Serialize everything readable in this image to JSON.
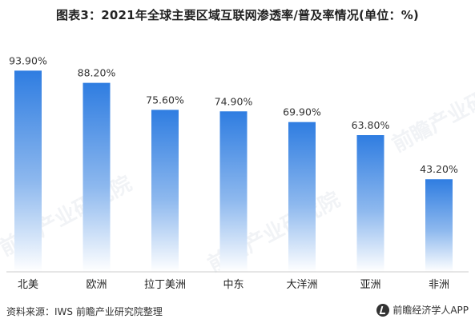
{
  "title": "图表3：2021年全球主要区域互联网渗透率/普及率情况(单位：%)",
  "footer": {
    "source": "资料来源：IWS 前瞻产业研究院整理",
    "brand": "前瞻经济学人APP"
  },
  "watermark": "前瞻产业研究院",
  "colors": {
    "bar_top": "#2f7de1",
    "bar_bottom": "#ffffff"
  },
  "chart_data": {
    "type": "bar",
    "categories": [
      "北美",
      "欧洲",
      "拉丁美洲",
      "中东",
      "大洋洲",
      "亚洲",
      "非洲"
    ],
    "values": [
      93.9,
      88.2,
      75.6,
      74.9,
      69.9,
      63.8,
      43.2
    ],
    "value_labels": [
      "93.90%",
      "88.20%",
      "75.60%",
      "74.90%",
      "69.90%",
      "63.80%",
      "43.20%"
    ],
    "ylim": [
      0,
      100
    ]
  }
}
